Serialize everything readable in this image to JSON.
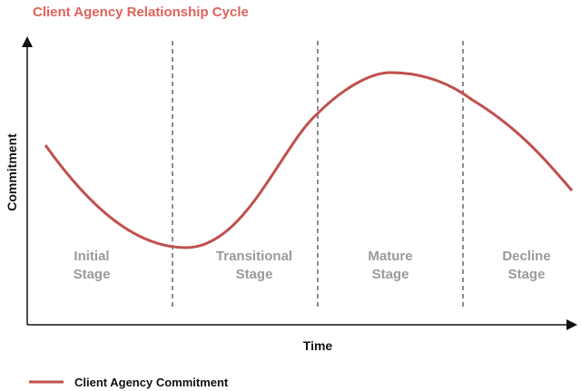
{
  "title": "Client Agency Relationship Cycle",
  "y_axis_label": "Commitment",
  "x_axis_label": "Time",
  "stages": [
    {
      "lines": [
        "Initial",
        "Stage"
      ]
    },
    {
      "lines": [
        "Transitional",
        "Stage"
      ]
    },
    {
      "lines": [
        "Mature",
        "Stage"
      ]
    },
    {
      "lines": [
        "Decline",
        "Stage"
      ]
    }
  ],
  "legend": {
    "label": "Client Agency Commitment"
  }
}
